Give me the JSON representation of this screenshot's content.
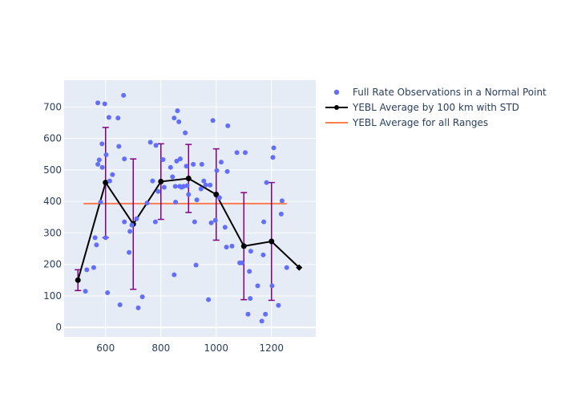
{
  "chart_data": {
    "type": "scatter",
    "xlim": [
      450,
      1360
    ],
    "ylim": [
      -30,
      785
    ],
    "x_ticks": [
      600,
      800,
      1000,
      1200
    ],
    "y_ticks": [
      0,
      100,
      200,
      300,
      400,
      500,
      600,
      700
    ],
    "grid": true,
    "legend_position": "top-right",
    "colors": {
      "plot_bg": "#E5ECF6",
      "scatter": "#636EFA",
      "average_line": "#000000",
      "std_bars": "#800080",
      "overall": "#FF7F50"
    },
    "series": [
      {
        "name": "Full Rate Observations in a Normal Point",
        "kind": "scatter",
        "points": [
          [
            527,
            115
          ],
          [
            532,
            183
          ],
          [
            557,
            190
          ],
          [
            562,
            285
          ],
          [
            567,
            262
          ],
          [
            572,
            713
          ],
          [
            572,
            518
          ],
          [
            577,
            532
          ],
          [
            582,
            398
          ],
          [
            587,
            583
          ],
          [
            588,
            508
          ],
          [
            597,
            710
          ],
          [
            600,
            285
          ],
          [
            602,
            548
          ],
          [
            607,
            110
          ],
          [
            612,
            667
          ],
          [
            615,
            465
          ],
          [
            625,
            485
          ],
          [
            645,
            665
          ],
          [
            648,
            575
          ],
          [
            652,
            72
          ],
          [
            665,
            737
          ],
          [
            668,
            535
          ],
          [
            668,
            335
          ],
          [
            685,
            238
          ],
          [
            688,
            305
          ],
          [
            695,
            325
          ],
          [
            712,
            345
          ],
          [
            718,
            62
          ],
          [
            733,
            97
          ],
          [
            750,
            395
          ],
          [
            762,
            588
          ],
          [
            770,
            465
          ],
          [
            780,
            335
          ],
          [
            782,
            578
          ],
          [
            790,
            432
          ],
          [
            808,
            533
          ],
          [
            812,
            445
          ],
          [
            835,
            508
          ],
          [
            842,
            478
          ],
          [
            848,
            665
          ],
          [
            848,
            167
          ],
          [
            852,
            448
          ],
          [
            853,
            398
          ],
          [
            857,
            528
          ],
          [
            860,
            688
          ],
          [
            865,
            653
          ],
          [
            868,
            448
          ],
          [
            870,
            535
          ],
          [
            875,
            445
          ],
          [
            882,
            448
          ],
          [
            888,
            618
          ],
          [
            892,
            512
          ],
          [
            895,
            450
          ],
          [
            900,
            422
          ],
          [
            917,
            518
          ],
          [
            922,
            335
          ],
          [
            927,
            198
          ],
          [
            930,
            405
          ],
          [
            945,
            440
          ],
          [
            948,
            518
          ],
          [
            955,
            465
          ],
          [
            962,
            452
          ],
          [
            972,
            88
          ],
          [
            978,
            452
          ],
          [
            982,
            332
          ],
          [
            988,
            657
          ],
          [
            997,
            340
          ],
          [
            1002,
            498
          ],
          [
            1012,
            412
          ],
          [
            1018,
            525
          ],
          [
            1032,
            318
          ],
          [
            1037,
            255
          ],
          [
            1040,
            495
          ],
          [
            1042,
            640
          ],
          [
            1057,
            258
          ],
          [
            1075,
            555
          ],
          [
            1085,
            205
          ],
          [
            1093,
            205
          ],
          [
            1105,
            555
          ],
          [
            1115,
            42
          ],
          [
            1120,
            178
          ],
          [
            1123,
            92
          ],
          [
            1125,
            242
          ],
          [
            1150,
            132
          ],
          [
            1165,
            20
          ],
          [
            1170,
            230
          ],
          [
            1172,
            335
          ],
          [
            1178,
            42
          ],
          [
            1182,
            460
          ],
          [
            1202,
            132
          ],
          [
            1205,
            540
          ],
          [
            1208,
            570
          ],
          [
            1225,
            70
          ],
          [
            1235,
            360
          ],
          [
            1238,
            402
          ],
          [
            1255,
            190
          ]
        ]
      },
      {
        "name": "YEBL Average by 100 km with STD",
        "kind": "line",
        "x": [
          500,
          600,
          700,
          800,
          900,
          1000,
          1100,
          1200,
          1300
        ],
        "y": [
          150,
          460,
          328,
          463,
          473,
          422,
          258,
          273,
          190
        ],
        "std": [
          33,
          175,
          207,
          120,
          108,
          145,
          170,
          187,
          0
        ]
      },
      {
        "name": "YEBL Average for all Ranges",
        "kind": "hline",
        "x": [
          520,
          1255
        ],
        "y": 393
      }
    ]
  }
}
